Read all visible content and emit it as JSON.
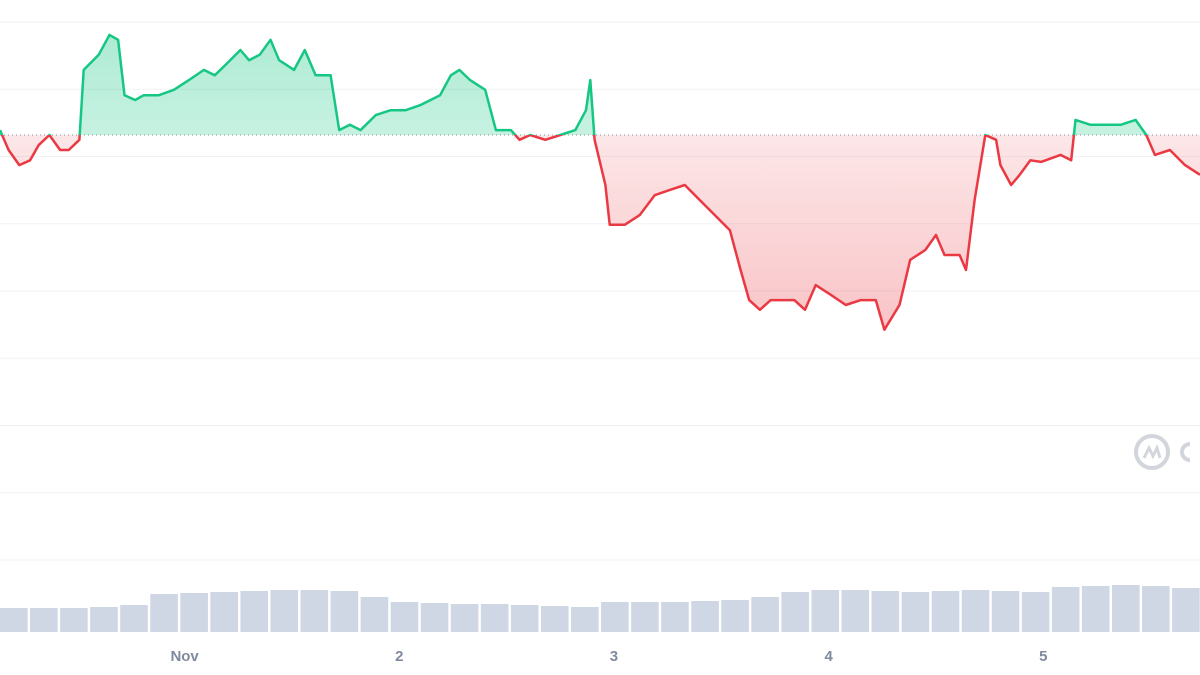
{
  "chart_data": {
    "type": "line",
    "x": [
      0.14,
      0.18,
      0.23,
      0.28,
      0.32,
      0.37,
      0.42,
      0.46,
      0.51,
      0.53,
      0.6,
      0.65,
      0.69,
      0.72,
      0.77,
      0.81,
      0.88,
      0.95,
      1.02,
      1.09,
      1.14,
      1.19,
      1.26,
      1.3,
      1.35,
      1.4,
      1.44,
      1.51,
      1.56,
      1.61,
      1.68,
      1.72,
      1.77,
      1.82,
      1.89,
      1.96,
      2.03,
      2.1,
      2.19,
      2.24,
      2.28,
      2.33,
      2.4,
      2.45,
      2.52,
      2.56,
      2.61,
      2.68,
      2.75,
      2.82,
      2.87,
      2.89,
      2.91,
      2.96,
      2.98,
      3.05,
      3.12,
      3.19,
      3.26,
      3.33,
      3.4,
      3.47,
      3.54,
      3.59,
      3.63,
      3.68,
      3.73,
      3.77,
      3.84,
      3.89,
      3.94,
      4.01,
      4.08,
      4.15,
      4.22,
      4.26,
      4.33,
      4.38,
      4.45,
      4.5,
      4.54,
      4.61,
      4.64,
      4.68,
      4.73,
      4.78,
      4.8,
      4.85,
      4.89,
      4.94,
      4.99,
      5.08,
      5.13,
      5.15,
      5.22,
      5.29,
      5.36,
      5.43,
      5.48,
      5.52,
      5.59,
      5.66,
      5.73
    ],
    "values": [
      79.9,
      76.2,
      73.4,
      74.3,
      77.1,
      79.0,
      76.2,
      76.2,
      78.1,
      91.1,
      93.9,
      97.6,
      96.7,
      86.4,
      85.5,
      86.4,
      86.4,
      87.4,
      89.2,
      91.1,
      90.1,
      92.0,
      94.8,
      92.9,
      93.9,
      96.7,
      92.9,
      91.1,
      94.8,
      90.1,
      90.1,
      79.9,
      80.9,
      79.9,
      82.7,
      83.6,
      83.6,
      84.6,
      86.4,
      90.1,
      91.1,
      89.2,
      87.4,
      79.9,
      79.9,
      78.1,
      79.0,
      78.1,
      79.0,
      79.9,
      83.6,
      89.2,
      78.1,
      69.7,
      62.3,
      62.3,
      64.1,
      67.8,
      68.8,
      69.7,
      66.9,
      64.1,
      61.3,
      53.9,
      48.3,
      46.5,
      48.3,
      48.3,
      48.3,
      46.5,
      51.1,
      49.3,
      47.4,
      48.3,
      48.3,
      42.8,
      47.4,
      55.8,
      57.6,
      60.4,
      56.7,
      56.7,
      53.9,
      66.9,
      79.0,
      78.1,
      73.4,
      69.7,
      71.6,
      74.3,
      74.0,
      75.3,
      74.3,
      81.8,
      80.9,
      80.9,
      80.9,
      81.8,
      79.0,
      75.3,
      76.2,
      73.4,
      71.6
    ],
    "baseline": 79.0,
    "up_color": "#16c784",
    "down_color": "#ea3943",
    "xlim": [
      0.14,
      5.73
    ],
    "ylim": [
      0,
      100
    ],
    "xticks": [
      {
        "value": 1,
        "label": "Nov"
      },
      2,
      3,
      4,
      5
    ],
    "grid": true,
    "volume": {
      "x": [
        0.14,
        0.28,
        0.42,
        0.56,
        0.7,
        0.84,
        0.98,
        1.12,
        1.26,
        1.4,
        1.54,
        1.68,
        1.82,
        1.96,
        2.1,
        2.24,
        2.38,
        2.52,
        2.66,
        2.8,
        2.94,
        3.08,
        3.22,
        3.36,
        3.5,
        3.64,
        3.78,
        3.92,
        4.06,
        4.2,
        4.34,
        4.48,
        4.62,
        4.76,
        4.9,
        5.04,
        5.18,
        5.32,
        5.46,
        5.6
      ],
      "values": [
        24,
        24,
        24,
        25,
        27,
        38,
        39,
        40,
        41,
        42,
        42,
        41,
        35,
        30,
        29,
        28,
        28,
        27,
        26,
        25,
        30,
        30,
        30,
        31,
        32,
        35,
        40,
        42,
        42,
        41,
        40,
        41,
        42,
        41,
        40,
        45,
        46,
        47,
        46,
        44
      ],
      "color": "#cfd6e4",
      "ylim": [
        0,
        60
      ]
    }
  }
}
